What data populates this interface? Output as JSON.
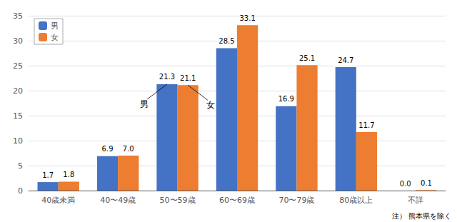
{
  "chart_data": {
    "type": "bar",
    "categories": [
      "40歳未満",
      "40〜49歳",
      "50〜59歳",
      "60〜69歳",
      "70〜79歳",
      "80歳以上",
      "不詳"
    ],
    "series": [
      {
        "name": "男",
        "color": "#4472C4",
        "values": [
          1.7,
          6.9,
          21.3,
          28.5,
          16.9,
          24.7,
          0.0
        ],
        "value_labels": [
          "1.7",
          "6.9",
          "21.3",
          "28.5",
          "16.9",
          "24.7",
          "0.0"
        ]
      },
      {
        "name": "女",
        "color": "#ED7D31",
        "values": [
          1.8,
          7.0,
          21.1,
          33.1,
          25.1,
          11.7,
          0.1
        ],
        "value_labels": [
          "1.8",
          "7.0",
          "21.1",
          "33.1",
          "25.1",
          "11.7",
          "0.1"
        ]
      }
    ],
    "ylim": [
      0,
      35
    ],
    "yticks": [
      0,
      5,
      10,
      15,
      20,
      25,
      30,
      35
    ],
    "grid": true,
    "legend": "upper left",
    "data_labels": true,
    "annotations": [
      {
        "text": "男",
        "series": "男",
        "category": "50〜59歳"
      },
      {
        "text": "女",
        "series": "女",
        "category": "50〜59歳"
      }
    ],
    "note": "注） 熊本県を除く"
  }
}
